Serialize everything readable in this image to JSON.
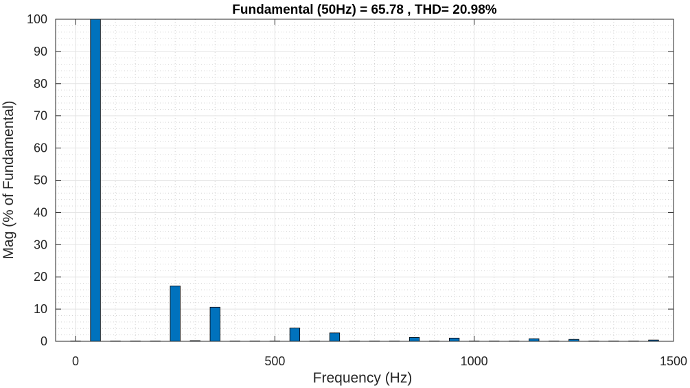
{
  "chart_data": {
    "type": "bar",
    "title": "Fundamental (50Hz) = 65.78 , THD= 20.98%",
    "xlabel": "Frequency (Hz)",
    "ylabel": "Mag (% of Fundamental)",
    "xlim": [
      -50,
      1500
    ],
    "ylim": [
      0,
      100
    ],
    "xticks": [
      0,
      500,
      1000,
      1500
    ],
    "yticks": [
      0,
      10,
      20,
      30,
      40,
      50,
      60,
      70,
      80,
      90,
      100
    ],
    "grid": true,
    "minor_grid": true,
    "bar_width_hz": 25,
    "bar_color": "#0072BD",
    "bar_edge_color": "#000000",
    "x": [
      0,
      50,
      100,
      150,
      200,
      250,
      300,
      350,
      400,
      450,
      500,
      550,
      600,
      650,
      700,
      750,
      800,
      850,
      900,
      950,
      1000,
      1050,
      1100,
      1150,
      1200,
      1250,
      1300,
      1350,
      1400,
      1450
    ],
    "values": [
      0.1,
      100,
      0.1,
      0.1,
      0.1,
      17.2,
      0.2,
      10.6,
      0.1,
      0.1,
      0.1,
      4.1,
      0.1,
      2.6,
      0.1,
      0.1,
      0.1,
      1.2,
      0.1,
      1.0,
      0.1,
      0.1,
      0.1,
      0.8,
      0.1,
      0.6,
      0.1,
      0.1,
      0.1,
      0.4
    ]
  }
}
